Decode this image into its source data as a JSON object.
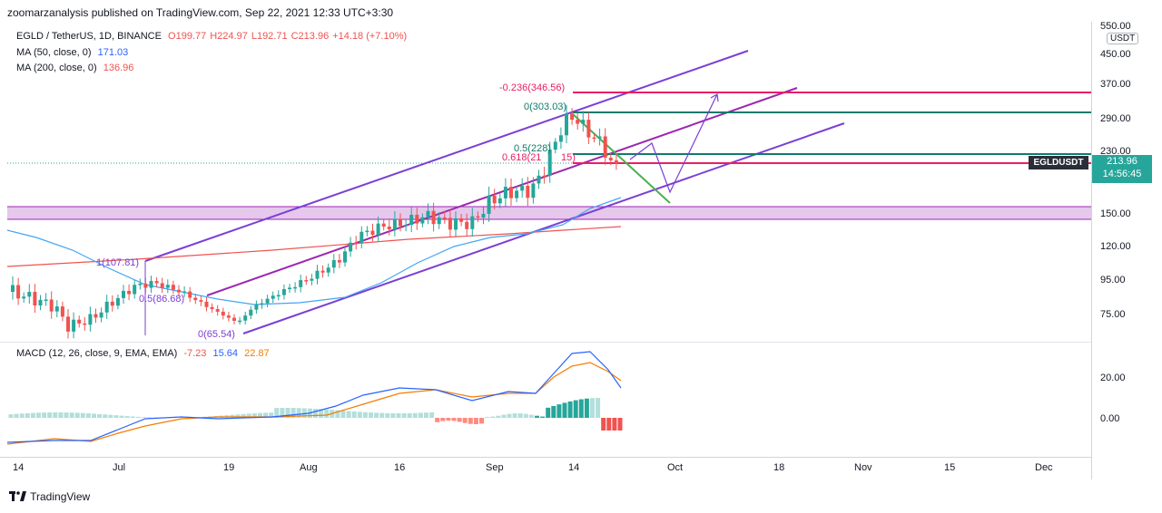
{
  "header": {
    "published": "zoomarzanalysis published on TradingView.com, Sep 22, 2021 12:33 UTC+3:30"
  },
  "legend": {
    "symbol": "EGLD / TetherUS, 1D, BINANCE",
    "open": "O199.77",
    "high": "H224.97",
    "low": "L192.71",
    "close": "C213.96",
    "change": "+14.18 (+7.10%)",
    "ma50_label": "MA (50, close, 0)",
    "ma50_value": "171.03",
    "ma200_label": "MA (200, close, 0)",
    "ma200_value": "136.96"
  },
  "macd_legend": {
    "label": "MACD (12, 26, close, 9, EMA, EMA)",
    "hist": "-7.23",
    "macd": "15.64",
    "signal": "22.87"
  },
  "price_axis": {
    "currency": "USDT",
    "ticks": [
      "550.00",
      "450.00",
      "370.00",
      "290.00",
      "230.00",
      "150.00",
      "120.00",
      "95.00",
      "75.00"
    ]
  },
  "macd_axis": {
    "ticks": [
      "20.00",
      "0.00"
    ]
  },
  "time_axis": {
    "ticks": [
      "14",
      "Jul",
      "19",
      "Aug",
      "16",
      "Sep",
      "14",
      "Oct",
      "18",
      "Nov",
      "15",
      "Dec"
    ]
  },
  "current": {
    "symbol": "EGLDUSDT",
    "price": "213.96",
    "countdown": "14:56:45"
  },
  "fib_upper": {
    "l1": "-0.236(346.56)",
    "l2": "0(303.03)",
    "l3": "0.5(228)",
    "l4": "0.618(21",
    "l4b": "15)"
  },
  "fib_lower": {
    "l1": "1(107.81)",
    "l2": "0.5(86.68)",
    "l3": "0(65.54)"
  },
  "colors": {
    "up": "#26a69a",
    "down": "#ef5350",
    "ma50": "#42a5f5",
    "ma200": "#ef5350",
    "channel": "#7b3fd6",
    "fib_red": "#e91e63",
    "fib_teal": "#0f7b6c",
    "zone": "#e1bee7"
  },
  "footer": {
    "brand": "TradingView"
  }
}
